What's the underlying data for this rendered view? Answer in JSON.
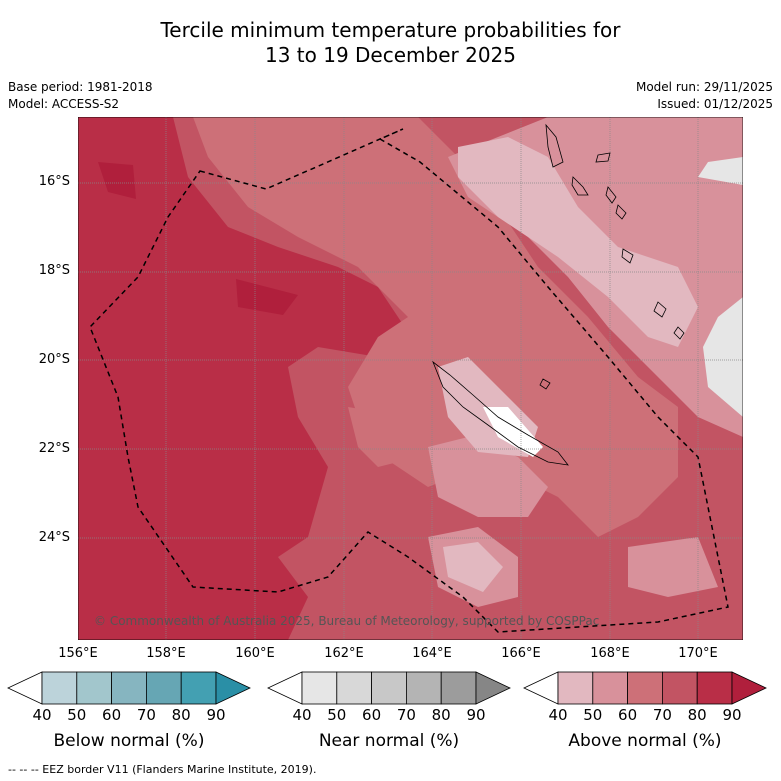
{
  "title_line1": "Tercile minimum temperature probabilities for",
  "title_line2": "13 to 19 December 2025",
  "base_period": "Base period: 1981-2018",
  "model": "Model: ACCESS-S2",
  "model_run": "Model run: 29/11/2025",
  "issued": "Issued: 01/12/2025",
  "copyright": "© Commonwealth of Australia 2025, Bureau of Meteorology, supported by COSPPac",
  "footer": "--  --  -- EEZ border V11 (Flanders Marine Institute, 2019).",
  "lat_labels": [
    "16°S",
    "18°S",
    "20°S",
    "22°S",
    "24°S"
  ],
  "lon_labels": [
    "156°E",
    "158°E",
    "160°E",
    "162°E",
    "164°E",
    "166°E",
    "168°E",
    "170°E"
  ],
  "colorbars": [
    {
      "label": "Below normal (%)",
      "ticks": [
        "40",
        "50",
        "60",
        "70",
        "80",
        "90"
      ],
      "colors": [
        "#ffffff",
        "#bcd3da",
        "#a2c6cc",
        "#86b5c0",
        "#66a6b4",
        "#43a0b2",
        "#2a8fa6"
      ]
    },
    {
      "label": "Near normal (%)",
      "ticks": [
        "40",
        "50",
        "60",
        "70",
        "80",
        "90"
      ],
      "colors": [
        "#ffffff",
        "#e6e6e6",
        "#d8d8d8",
        "#c8c8c8",
        "#b4b4b4",
        "#9c9c9c",
        "#868686"
      ]
    },
    {
      "label": "Above normal (%)",
      "ticks": [
        "40",
        "50",
        "60",
        "70",
        "80",
        "90"
      ],
      "colors": [
        "#ffffff",
        "#e2b8c0",
        "#d8919b",
        "#cd7078",
        "#c25463",
        "#b92e47",
        "#b01f3c"
      ]
    }
  ],
  "map_colors": {
    "above_60": "#cd7078",
    "above_70": "#c25463",
    "above_80": "#b92e47",
    "above_90": "#b01f3c",
    "above_50": "#d8919b",
    "above_40": "#e2b8c0",
    "near_50": "#e6e6e6",
    "near_60": "#d8d8d8"
  }
}
